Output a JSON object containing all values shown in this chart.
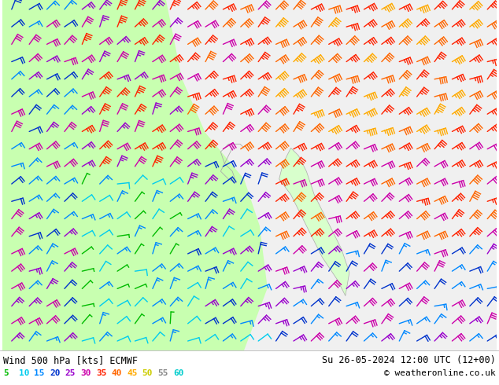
{
  "title_left": "Wind 500 hPa [kts] ECMWF",
  "title_right": "Su 26-05-2024 12:00 UTC (12+00)",
  "copyright": "© weatheronline.co.uk",
  "legend_values": [
    5,
    10,
    15,
    20,
    25,
    30,
    35,
    40,
    45,
    50,
    55,
    60
  ],
  "legend_colors": [
    "#00bb00",
    "#00ccee",
    "#0088ff",
    "#0033cc",
    "#9900cc",
    "#cc00aa",
    "#ff2200",
    "#ff6600",
    "#ffaa00",
    "#cccc00",
    "#888888",
    "#00cccc"
  ],
  "bg_color": "#ffffff",
  "fig_width": 6.34,
  "fig_height": 4.9,
  "dpi": 100,
  "map_green_bg": "#c8ffb0",
  "map_white_bg": "#e8e8ee",
  "map_sea_bg": "#ddeeff"
}
